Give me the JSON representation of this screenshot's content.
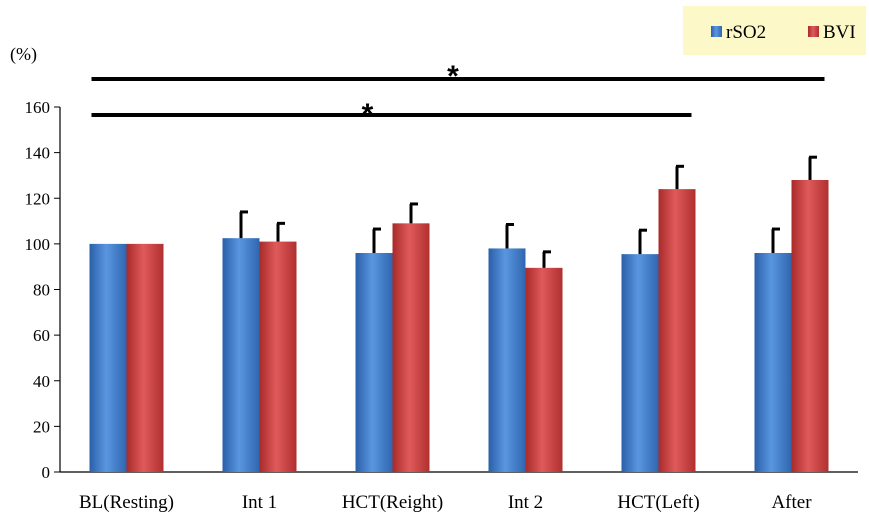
{
  "chart_data": {
    "type": "bar",
    "ylabel_unit": "(%)",
    "categories": [
      "BL(Resting)",
      "Int 1",
      "HCT(Reight)",
      "Int 2",
      "HCT(Left)",
      "After"
    ],
    "series": [
      {
        "name": "rSO2",
        "color": "#3a78c8",
        "values": [
          100,
          102.5,
          96,
          98,
          95.5,
          96
        ],
        "error": [
          0,
          11.5,
          10.5,
          10.5,
          10.5,
          10.5
        ]
      },
      {
        "name": "BVI",
        "color": "#c83a3a",
        "values": [
          100,
          101,
          109,
          89.5,
          124,
          128
        ],
        "error": [
          0,
          8,
          8.5,
          7,
          10,
          10
        ]
      }
    ],
    "ylim": [
      0,
      160
    ],
    "yticks": [
      0,
      20,
      40,
      60,
      80,
      100,
      120,
      140,
      160
    ],
    "legend_position": "top-right",
    "significance": [
      {
        "from": "BL(Resting)",
        "to": "After",
        "label": "*"
      },
      {
        "from": "BL(Resting)",
        "to": "HCT(Left)",
        "label": "*"
      }
    ]
  }
}
